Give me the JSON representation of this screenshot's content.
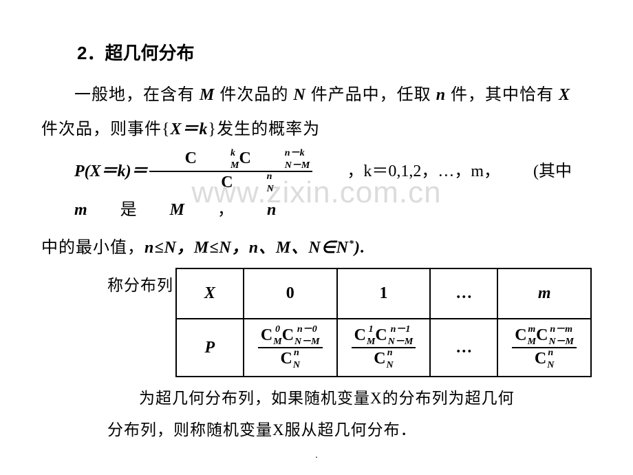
{
  "watermark": "www.zixin.com.cn",
  "heading": "2．超几何分布",
  "para1a": "一般地，在含有 ",
  "M": "M",
  "para1b": " 件次品的 ",
  "N": "N",
  "para1c": " 件产品中，任取 ",
  "n": "n",
  "para1d": " 件，其中恰有 ",
  "X": "X",
  "para1e": " 件次品，则事件{",
  "eq1": "X＝k",
  "para1f": "}发生的概率为",
  "formula_left": "P(X＝k)＝",
  "C": "C",
  "sup_k": "k",
  "sub_M": "M",
  "sup_nmk": "n－k",
  "sub_NmM": "N－M",
  "sup_n": "n",
  "sub_N": "N",
  "formula_mid": "，k＝0,1,2，…，m，",
  "formula_tail_a": "(其中 ",
  "m": "m",
  "formula_tail_b": " 是 ",
  "formula_tail_c": "，",
  "para2a": "中的最小值，",
  "cond": "n≤N，M≤N，n、M、N∈N",
  "star": "*",
  "para2b": ").",
  "table_label": "称分布列",
  "thX": "X",
  "th0": "0",
  "th1": "1",
  "thdots": "…",
  "thm": "m",
  "thP": "P",
  "sup_0": "0",
  "sup_nm0": "n－0",
  "sup_1": "1",
  "sup_nm1": "n－1",
  "sup_m": "m",
  "sup_nmm": "n－m",
  "bottom1": "为超几何分布列，如果随机变量X的分布列为超几何",
  "bottom2": "分布列，则称随机变量X服从超几何分布．",
  "pagedot": "."
}
